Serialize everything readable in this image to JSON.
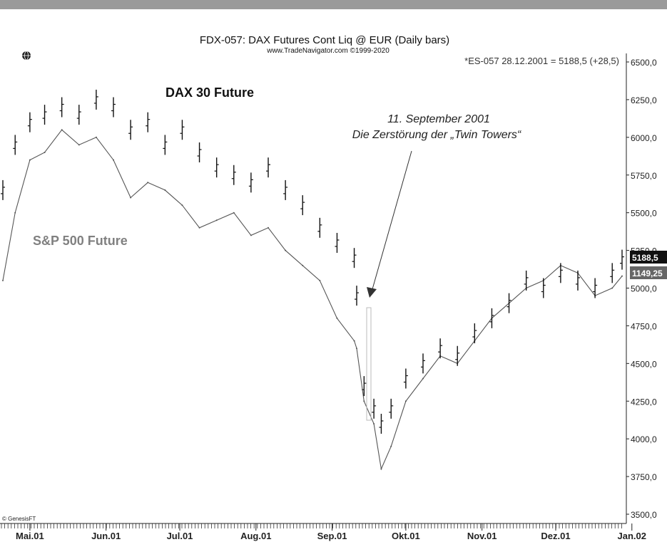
{
  "header": {
    "title": "FDX-057:  DAX Futures Cont Liq @ EUR  (Daily bars)",
    "subtitle": "www.TradeNavigator.com ©1999-2020",
    "quote": "*ES-057   28.12.2001  =  5188,5  (+28,5)"
  },
  "copyright": "© GenesisFT",
  "annotation": {
    "line1": "11. September 2001",
    "line2": "Die Zerstörung der „Twin Towers“"
  },
  "colors": {
    "dax": "#111111",
    "sp500": "#555555",
    "sp500_label": "#808080",
    "last_dax_tag": "#111111",
    "last_sp_tag": "#666666",
    "header_bar": "#9a9a9a"
  },
  "icons": [
    "globe-icon"
  ],
  "chart_data": {
    "type": "line",
    "ylim": [
      3500,
      6500
    ],
    "y_ticks": [
      "6500,0",
      "6250,0",
      "6000,0",
      "5750,0",
      "5500,0",
      "5250,0",
      "5000,0",
      "4750,0",
      "4500,0",
      "4250,0",
      "4000,0",
      "3750,0",
      "3500,0"
    ],
    "x_ticks": [
      "Mai.01",
      "Jun.01",
      "Jul.01",
      "Aug.01",
      "Sep.01",
      "Okt.01",
      "Nov.01",
      "Dez.01",
      "Jan.02"
    ],
    "last_values": [
      "5188,5",
      "1149,25"
    ],
    "series": [
      {
        "name": "DAX 30 Future",
        "style": "ohlc-bars",
        "x": [
          "2001-04-20",
          "2001-04-25",
          "2001-05-01",
          "2001-05-07",
          "2001-05-14",
          "2001-05-21",
          "2001-05-28",
          "2001-06-04",
          "2001-06-11",
          "2001-06-18",
          "2001-06-25",
          "2001-07-02",
          "2001-07-09",
          "2001-07-16",
          "2001-07-23",
          "2001-07-30",
          "2001-08-06",
          "2001-08-13",
          "2001-08-20",
          "2001-08-27",
          "2001-09-03",
          "2001-09-10",
          "2001-09-11",
          "2001-09-14",
          "2001-09-18",
          "2001-09-21",
          "2001-09-25",
          "2001-10-01",
          "2001-10-08",
          "2001-10-15",
          "2001-10-22",
          "2001-10-29",
          "2001-11-05",
          "2001-11-12",
          "2001-11-19",
          "2001-11-26",
          "2001-12-03",
          "2001-12-10",
          "2001-12-17",
          "2001-12-24",
          "2001-12-28"
        ],
        "y": [
          5650,
          5950,
          6100,
          6150,
          6200,
          6150,
          6250,
          6200,
          6050,
          6100,
          5950,
          6050,
          5900,
          5800,
          5750,
          5700,
          5800,
          5650,
          5550,
          5400,
          5300,
          5200,
          4950,
          4350,
          4200,
          4100,
          4200,
          4400,
          4500,
          4600,
          4550,
          4700,
          4800,
          4900,
          5050,
          5000,
          5100,
          5050,
          5000,
          5100,
          5188.5
        ]
      },
      {
        "name": "S&P 500 Future",
        "style": "line",
        "x": [
          "2001-04-20",
          "2001-04-25",
          "2001-05-01",
          "2001-05-07",
          "2001-05-14",
          "2001-05-21",
          "2001-05-28",
          "2001-06-04",
          "2001-06-11",
          "2001-06-18",
          "2001-06-25",
          "2001-07-02",
          "2001-07-09",
          "2001-07-16",
          "2001-07-23",
          "2001-07-30",
          "2001-08-06",
          "2001-08-13",
          "2001-08-20",
          "2001-08-27",
          "2001-09-03",
          "2001-09-10",
          "2001-09-11",
          "2001-09-14",
          "2001-09-18",
          "2001-09-21",
          "2001-09-25",
          "2001-10-01",
          "2001-10-08",
          "2001-10-15",
          "2001-10-22",
          "2001-10-29",
          "2001-11-05",
          "2001-11-12",
          "2001-11-19",
          "2001-11-26",
          "2001-12-03",
          "2001-12-10",
          "2001-12-17",
          "2001-12-24",
          "2001-12-28"
        ],
        "y": [
          5050,
          5500,
          5850,
          5900,
          6050,
          5950,
          6000,
          5850,
          5600,
          5700,
          5650,
          5550,
          5400,
          5450,
          5500,
          5350,
          5400,
          5250,
          5150,
          5050,
          4800,
          4650,
          4600,
          4250,
          4100,
          3800,
          3950,
          4250,
          4400,
          4550,
          4500,
          4650,
          4800,
          4900,
          5000,
          5050,
          5150,
          5100,
          4950,
          5000,
          5080
        ]
      }
    ]
  }
}
